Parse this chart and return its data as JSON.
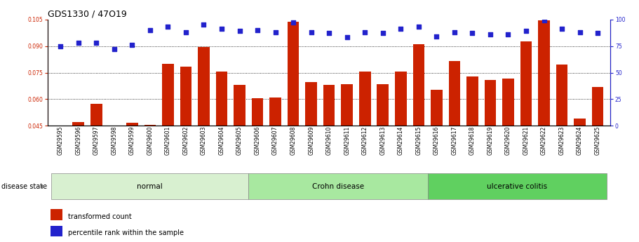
{
  "title": "GDS1330 / 47O19",
  "samples": [
    "GSM29595",
    "GSM29596",
    "GSM29597",
    "GSM29598",
    "GSM29599",
    "GSM29600",
    "GSM29601",
    "GSM29602",
    "GSM29603",
    "GSM29604",
    "GSM29605",
    "GSM29606",
    "GSM29607",
    "GSM29608",
    "GSM29609",
    "GSM29610",
    "GSM29611",
    "GSM29612",
    "GSM29613",
    "GSM29614",
    "GSM29615",
    "GSM29616",
    "GSM29617",
    "GSM29618",
    "GSM29619",
    "GSM29620",
    "GSM29621",
    "GSM29622",
    "GSM29623",
    "GSM29624",
    "GSM29625"
  ],
  "transformed_count": [
    0.0452,
    0.0472,
    0.0575,
    0.0452,
    0.0468,
    0.0455,
    0.08,
    0.0785,
    0.0895,
    0.0755,
    0.068,
    0.0605,
    0.061,
    0.1035,
    0.0695,
    0.068,
    0.0685,
    0.0755,
    0.0685,
    0.0755,
    0.091,
    0.0655,
    0.0815,
    0.073,
    0.071,
    0.0715,
    0.0925,
    0.1045,
    0.0795,
    0.049,
    0.067
  ],
  "percentile_rank": [
    75,
    78,
    78,
    72,
    76,
    90,
    93,
    88,
    95,
    91,
    89,
    90,
    88,
    97,
    88,
    87,
    83,
    88,
    87,
    91,
    93,
    84,
    88,
    87,
    86,
    86,
    89,
    99,
    91,
    88,
    87
  ],
  "groups": [
    {
      "label": "normal",
      "start": 0,
      "end": 11,
      "color": "#d8f0d0"
    },
    {
      "label": "Crohn disease",
      "start": 11,
      "end": 21,
      "color": "#a8e8a0"
    },
    {
      "label": "ulcerative colitis",
      "start": 21,
      "end": 31,
      "color": "#60d060"
    }
  ],
  "ylim_left": [
    0.045,
    0.105
  ],
  "ylim_right": [
    0,
    100
  ],
  "yticks_left": [
    0.045,
    0.06,
    0.075,
    0.09,
    0.105
  ],
  "yticks_right": [
    0,
    25,
    50,
    75,
    100
  ],
  "bar_color": "#cc2200",
  "dot_color": "#2222cc",
  "dot_size": 20,
  "grid_color": "black",
  "title_fontsize": 9,
  "tick_fontsize": 5.5,
  "label_fontsize": 7,
  "group_label_fontsize": 7.5,
  "legend_fontsize": 7,
  "disease_state_label": "disease state",
  "legend_items": [
    "transformed count",
    "percentile rank within the sample"
  ],
  "bg_color": "#ffffff"
}
